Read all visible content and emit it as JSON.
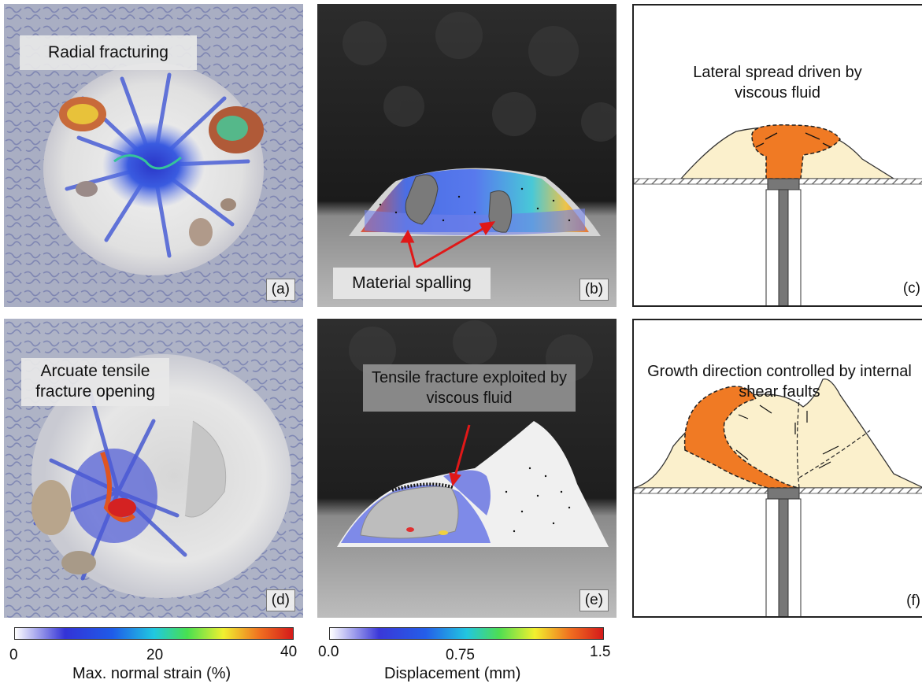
{
  "panels": {
    "a": {
      "letter": "(a)",
      "annotation": "Radial fracturing"
    },
    "b": {
      "letter": "(b)",
      "annotation": "Material spalling"
    },
    "c": {
      "letter": "(c)",
      "annotation": "Lateral spread driven by viscous fluid"
    },
    "d": {
      "letter": "(d)",
      "annotation": "Arcuate tensile fracture opening"
    },
    "e": {
      "letter": "(e)",
      "annotation": "Tensile fracture exploited by viscous fluid"
    },
    "f": {
      "letter": "(f)",
      "annotation": "Growth direction controlled by internal shear faults"
    }
  },
  "colorbars": {
    "strain": {
      "title": "Max. normal strain (%)",
      "ticks": [
        "0",
        "20",
        "40"
      ]
    },
    "displacement": {
      "title": "Displacement (mm)",
      "ticks": [
        "0.0",
        "0.75",
        "1.5"
      ]
    }
  },
  "colors": {
    "magma": "#f07a24",
    "host": "#fbf0cc",
    "conduit": "#777777",
    "arrow": "#e01818"
  }
}
